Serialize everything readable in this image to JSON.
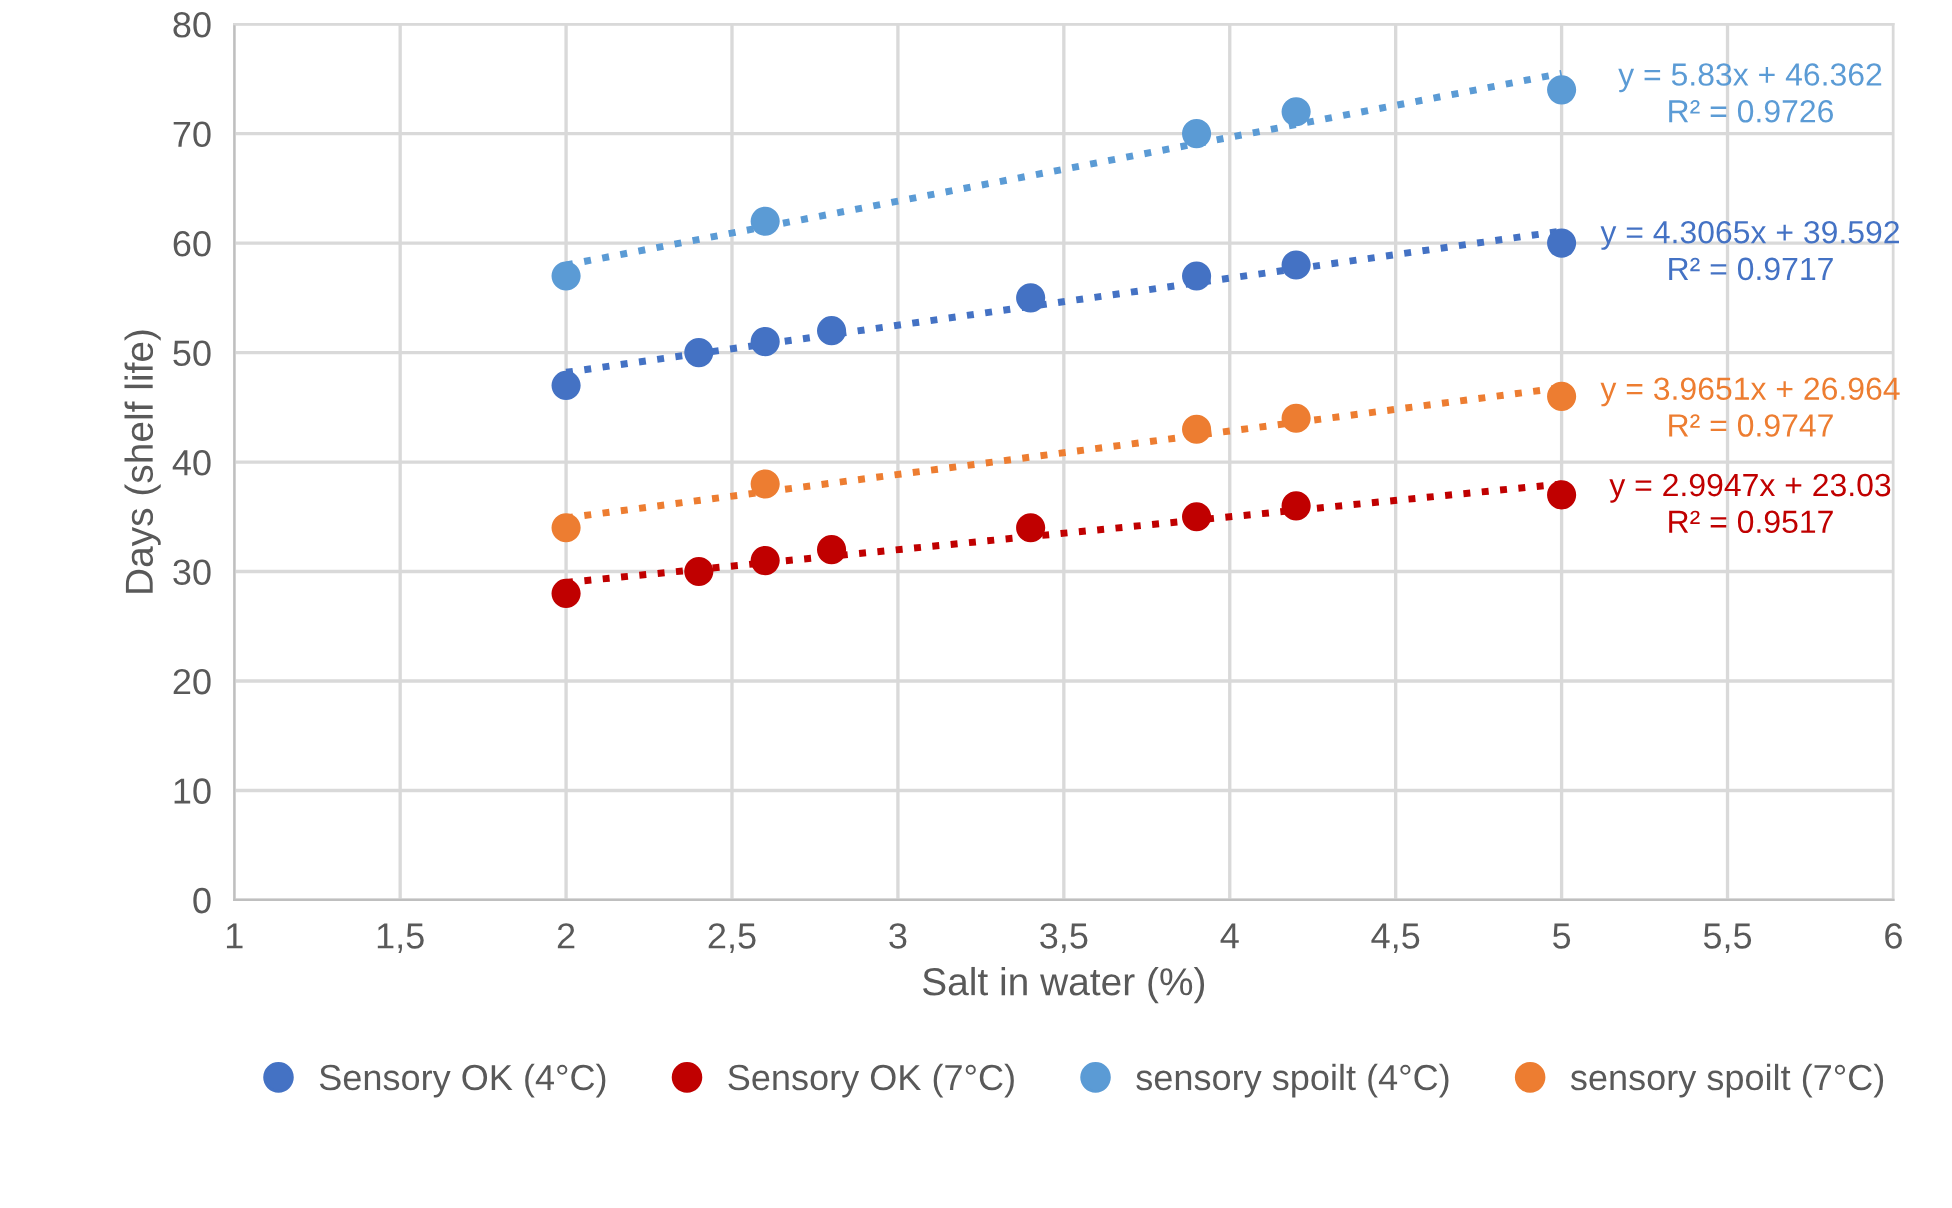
{
  "chart_data": {
    "type": "scatter",
    "xlabel": "Salt in water (%)",
    "ylabel": "Days (shelf life)",
    "xlim": [
      1,
      6
    ],
    "xticks": [
      1,
      {
        "value": 1.5,
        "label": "1,5"
      },
      2,
      {
        "value": 2.5,
        "label": "2,5"
      },
      3,
      {
        "value": 3.5,
        "label": "3,5"
      },
      4,
      {
        "value": 4.5,
        "label": "4,5"
      },
      5,
      {
        "value": 5.5,
        "label": "5,5"
      },
      6
    ],
    "ylim": [
      0,
      80
    ],
    "yticks": [
      0,
      10,
      20,
      30,
      40,
      50,
      60,
      70,
      80
    ],
    "grid": true,
    "legend": "bottom",
    "marker": "circle",
    "series": [
      {
        "name": "Sensory OK (4°C)",
        "color": "#4472c4",
        "x": [
          2,
          2.4,
          2.6,
          2.8,
          3.4,
          3.9,
          4.2,
          5
        ],
        "values": [
          47,
          50,
          51,
          52,
          55,
          57,
          58,
          60
        ]
      },
      {
        "name": "Sensory OK (7°C)",
        "color": "#c00000",
        "x": [
          2,
          2.4,
          2.6,
          2.8,
          3.4,
          3.9,
          4.2,
          5
        ],
        "values": [
          28,
          30,
          31,
          32,
          34,
          35,
          36,
          37
        ]
      },
      {
        "name": "sensory spoilt (4°C)",
        "color": "#5b9bd5",
        "x": [
          2,
          2.6,
          3.9,
          4.2,
          5
        ],
        "values": [
          57,
          62,
          70,
          72,
          74
        ]
      },
      {
        "name": "sensory spoilt (7°C)",
        "color": "#ed7d31",
        "x": [
          2,
          2.6,
          3.9,
          4.2,
          5
        ],
        "values": [
          34,
          38,
          43,
          44,
          46
        ]
      },
      {
        "type": "line",
        "line_style": "dotted",
        "marker": "none",
        "color": "#5b9bd5",
        "x": [
          2,
          5
        ],
        "values": [
          58,
          75.5
        ]
      },
      {
        "type": "line",
        "line_style": "dotted",
        "marker": "none",
        "color": "#4472c4",
        "x": [
          2,
          5
        ],
        "values": [
          48.2,
          61.1
        ]
      },
      {
        "type": "line",
        "line_style": "dotted",
        "marker": "none",
        "color": "#ed7d31",
        "x": [
          2,
          5
        ],
        "values": [
          34.9,
          46.8
        ]
      },
      {
        "type": "line",
        "line_style": "dotted",
        "marker": "none",
        "color": "#c00000",
        "x": [
          2,
          5
        ],
        "values": [
          29,
          38
        ]
      }
    ],
    "annotations": [
      "y = 5.83x + 46.362\nR² = 0.9726",
      "y = 4.3065x + 39.592\nR² = 0.9717",
      "y = 3.9651x + 26.964\nR² = 0.9747",
      "y = 2.9947x + 23.03\nR² = 0.9517"
    ]
  }
}
